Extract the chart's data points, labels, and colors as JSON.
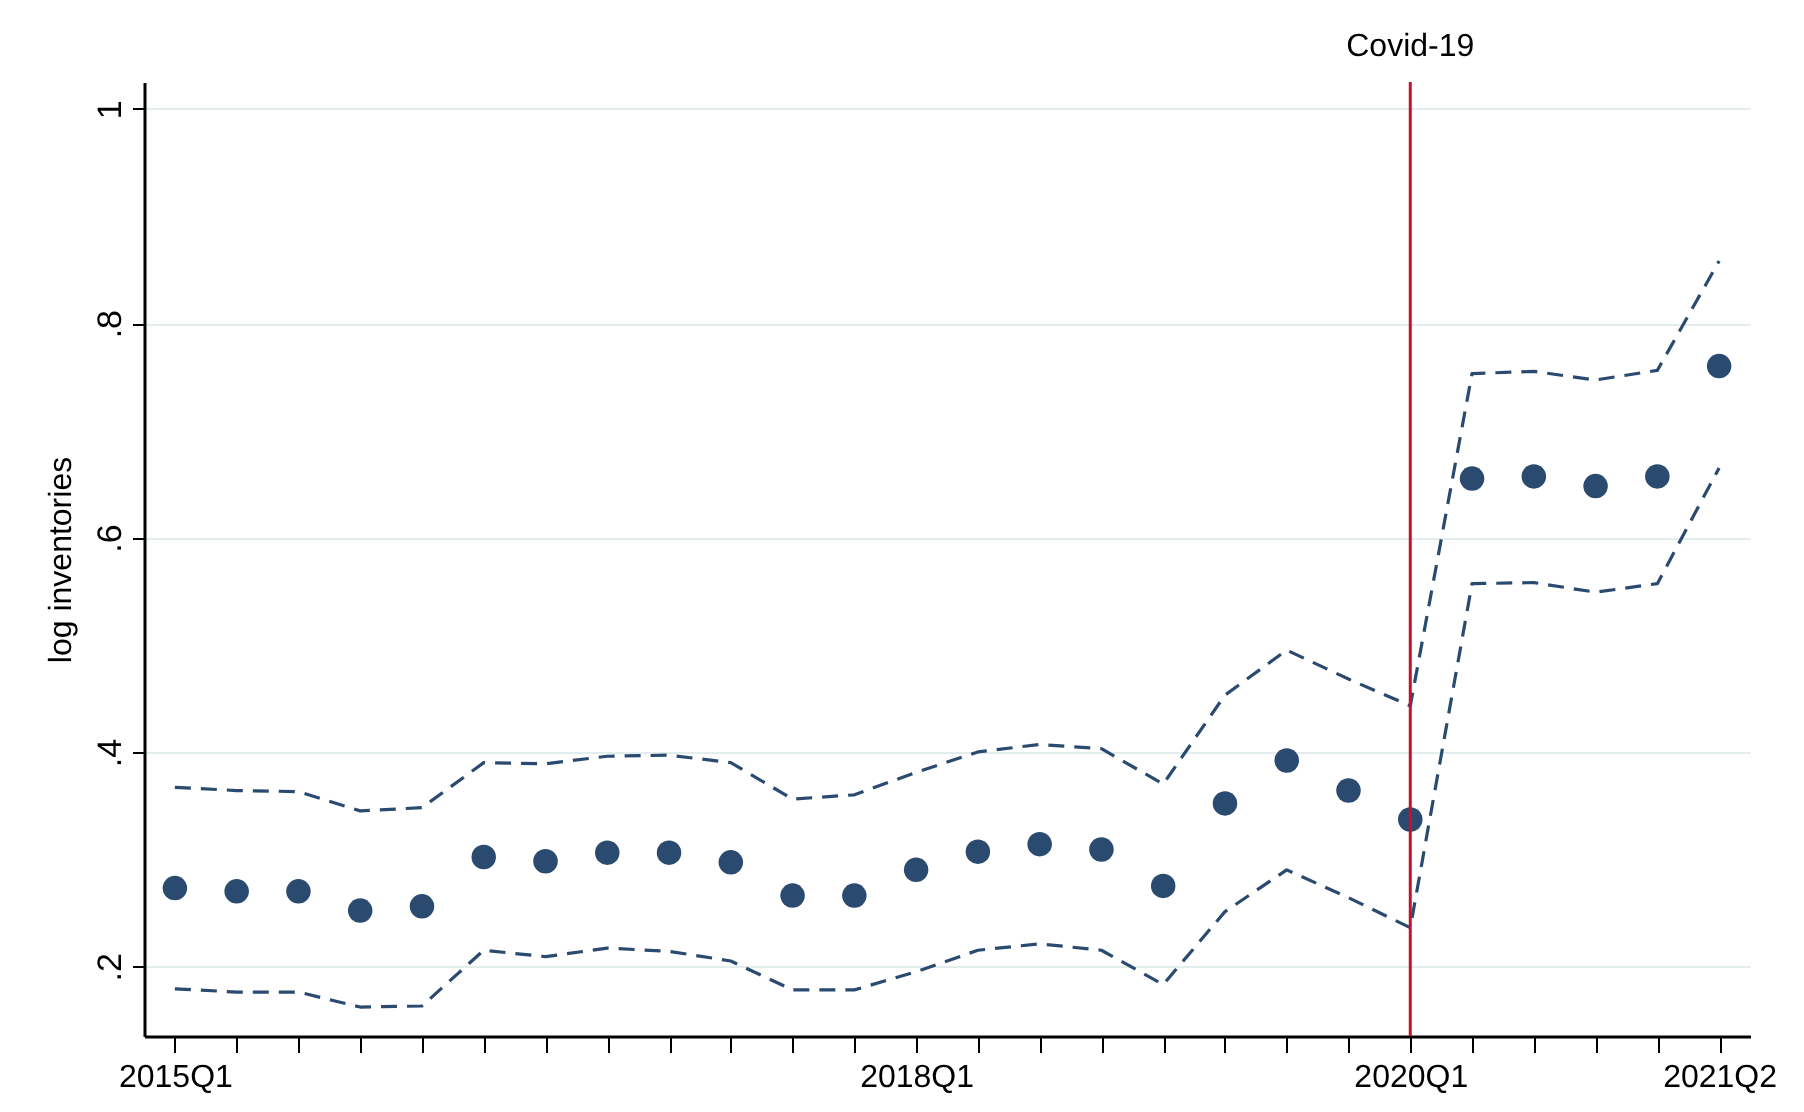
{
  "chart_data": {
    "type": "scatter",
    "ylabel": "log inventories",
    "categories": [
      "2015Q1",
      null,
      null,
      null,
      null,
      null,
      null,
      null,
      null,
      null,
      null,
      null,
      "2018Q1",
      null,
      null,
      null,
      null,
      null,
      null,
      null,
      "2020Q1",
      null,
      null,
      null,
      null,
      "2021Q2"
    ],
    "series": [
      {
        "color": "#2a4a70",
        "marker": "circle",
        "values": [
          0.273,
          0.27,
          0.27,
          0.252,
          0.256,
          0.302,
          0.298,
          0.306,
          0.306,
          0.297,
          0.266,
          0.266,
          0.29,
          0.307,
          0.314,
          0.309,
          0.275,
          0.352,
          0.392,
          0.364,
          0.337,
          0.655,
          0.657,
          0.648,
          0.657,
          0.76
        ]
      },
      {
        "type": "line",
        "color": "#2a4a70",
        "line_style": "dashed",
        "values": [
          0.367,
          0.364,
          0.363,
          0.345,
          0.348,
          0.39,
          0.389,
          0.396,
          0.397,
          0.39,
          0.356,
          0.36,
          0.381,
          0.4,
          0.407,
          0.403,
          0.37,
          0.453,
          0.495,
          0.468,
          0.443,
          0.753,
          0.755,
          0.747,
          0.756,
          0.858
        ]
      },
      {
        "type": "line",
        "color": "#2a4a70",
        "line_style": "dashed",
        "values": [
          0.179,
          0.176,
          0.176,
          0.162,
          0.163,
          0.215,
          0.209,
          0.217,
          0.214,
          0.205,
          0.178,
          0.178,
          0.195,
          0.215,
          0.221,
          0.215,
          0.183,
          0.251,
          0.29,
          0.264,
          0.236,
          0.557,
          0.558,
          0.549,
          0.557,
          0.665
        ]
      }
    ],
    "ylim": [
      0.135,
      1.025
    ],
    "yticks": [
      {
        "value": 0.2,
        "label": ".2"
      },
      {
        "value": 0.4,
        "label": ".4"
      },
      {
        "value": 0.6,
        "label": ".6"
      },
      {
        "value": 0.8,
        "label": ".8"
      },
      {
        "value": 1,
        "label": "1"
      }
    ],
    "grid": "y",
    "ref_lines": [
      {
        "axis": "x",
        "value": "2020Q1",
        "label": "Covid-19",
        "color": "#c8102e"
      }
    ]
  }
}
